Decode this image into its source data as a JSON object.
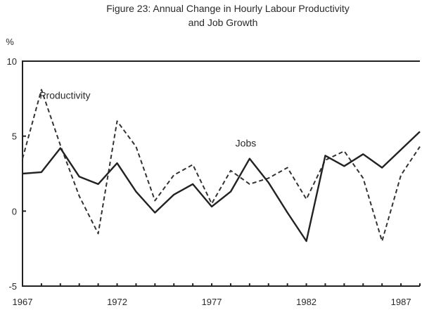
{
  "chart_data": {
    "type": "line",
    "title": "Figure 23: Annual Change in Hourly Labour Productivity",
    "subtitle": "and Job Growth",
    "ylabel": "%",
    "ylim": [
      -5,
      10
    ],
    "xlim": [
      1967,
      1988
    ],
    "yticks": [
      "10",
      "5",
      "0",
      "-5"
    ],
    "xticks": [
      "1967",
      "1972",
      "1977",
      "1982",
      "1987"
    ],
    "x": [
      1967,
      1968,
      1969,
      1970,
      1971,
      1972,
      1973,
      1974,
      1975,
      1976,
      1977,
      1978,
      1979,
      1980,
      1981,
      1982,
      1983,
      1984,
      1985,
      1986,
      1987,
      1988
    ],
    "series": [
      {
        "name": "Productivity",
        "style": "dashed",
        "values": [
          3.5,
          8.1,
          4.4,
          1.0,
          -1.5,
          6.0,
          4.3,
          0.7,
          2.4,
          3.1,
          0.5,
          2.7,
          1.8,
          2.2,
          2.9,
          0.8,
          3.4,
          4.0,
          2.2,
          -2.0,
          2.4,
          4.3
        ]
      },
      {
        "name": "Jobs",
        "style": "solid",
        "values": [
          2.5,
          2.6,
          4.2,
          2.3,
          1.8,
          3.2,
          1.3,
          -0.1,
          1.1,
          1.8,
          0.3,
          1.3,
          3.5,
          1.9,
          -0.1,
          -2.0,
          3.7,
          3.0,
          3.8,
          2.9,
          4.1,
          5.3
        ]
      }
    ],
    "annotations": [
      {
        "text": "Productivity",
        "series": "Productivity"
      },
      {
        "text": "Jobs",
        "series": "Jobs"
      }
    ],
    "grid": false,
    "legend": "none"
  }
}
